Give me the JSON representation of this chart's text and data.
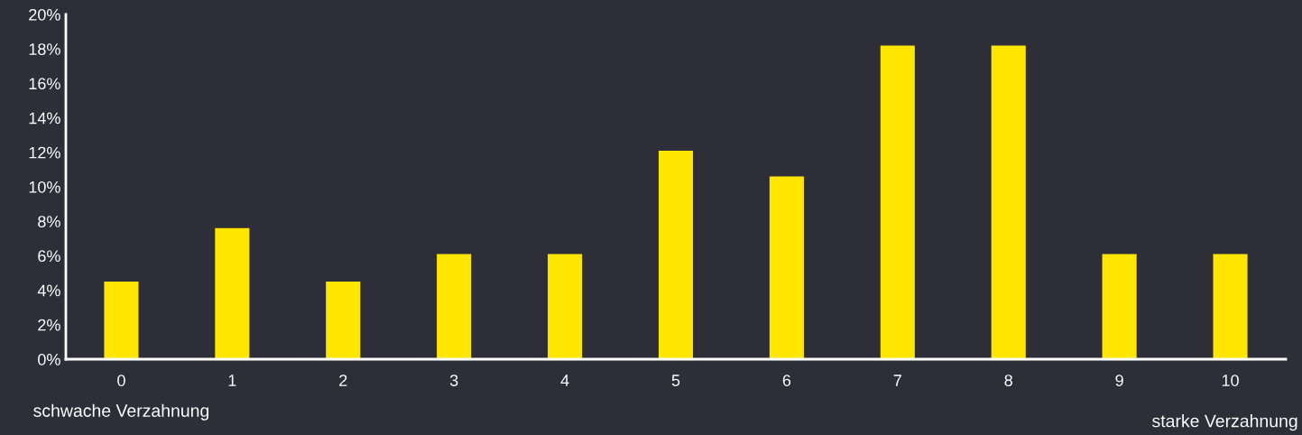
{
  "chart_data": {
    "type": "bar",
    "categories": [
      "0",
      "1",
      "2",
      "3",
      "4",
      "5",
      "6",
      "7",
      "8",
      "9",
      "10"
    ],
    "values": [
      4.5,
      7.6,
      4.5,
      6.1,
      6.1,
      12.1,
      10.6,
      18.2,
      18.2,
      6.1,
      6.1
    ],
    "color": "#ffe600",
    "ylim": [
      0,
      20
    ],
    "yticks": [
      {
        "value": 0,
        "label": "0%"
      },
      {
        "value": 2,
        "label": "2%"
      },
      {
        "value": 4,
        "label": "4%"
      },
      {
        "value": 6,
        "label": "6%"
      },
      {
        "value": 8,
        "label": "8%"
      },
      {
        "value": 10,
        "label": "10%"
      },
      {
        "value": 12,
        "label": "12%"
      },
      {
        "value": 14,
        "label": "14%"
      },
      {
        "value": 16,
        "label": "16%"
      },
      {
        "value": 18,
        "label": "18%"
      },
      {
        "value": 20,
        "label": "20%"
      }
    ],
    "annotations": [
      "schwache Verzahnung",
      "starke Verzahnung"
    ],
    "grid": false,
    "legend": false
  }
}
